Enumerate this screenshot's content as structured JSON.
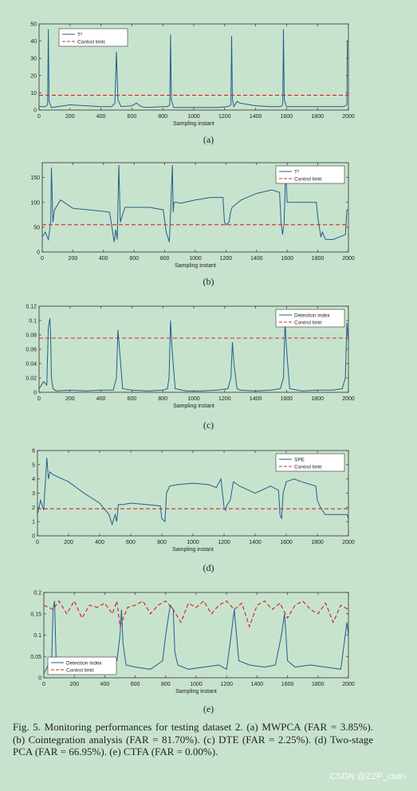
{
  "chart_data": [
    {
      "type": "line",
      "panel": "(a)",
      "xlabel": "Sampling instant",
      "ylabel": "",
      "xlim": [
        0,
        2000
      ],
      "ylim": [
        0,
        50
      ],
      "xticks": [
        0,
        200,
        400,
        600,
        800,
        1000,
        1200,
        1400,
        1600,
        1800,
        2000
      ],
      "yticks": [
        0,
        10,
        20,
        30,
        40,
        50
      ],
      "legend_position": "top-left",
      "grid": false,
      "series": [
        {
          "name": "T²",
          "style": "solid",
          "color": "#1f5f8f",
          "x": [
            0,
            40,
            55,
            60,
            65,
            80,
            120,
            200,
            300,
            400,
            470,
            490,
            500,
            510,
            530,
            600,
            630,
            660,
            700,
            800,
            830,
            845,
            850,
            855,
            870,
            950,
            1050,
            1150,
            1220,
            1240,
            1245,
            1250,
            1260,
            1280,
            1300,
            1400,
            1500,
            1560,
            1575,
            1580,
            1585,
            1600,
            1700,
            1800,
            1900,
            1970,
            1990,
            1993,
            2000
          ],
          "y": [
            2,
            2,
            3,
            47,
            5,
            1.5,
            2,
            3,
            2.5,
            2,
            2,
            4,
            34,
            6,
            2,
            2.5,
            4,
            2,
            1.5,
            2,
            2,
            3,
            44,
            6,
            1.5,
            1.5,
            1.5,
            1.5,
            2,
            3,
            43,
            6,
            2,
            5,
            4,
            2.5,
            2,
            2,
            3,
            47,
            6,
            2,
            2,
            2,
            2,
            2,
            3,
            40,
            40
          ]
        },
        {
          "name": "Control limit",
          "style": "dashed",
          "color": "#cc2b2b",
          "x": [
            0,
            2000
          ],
          "y": [
            8.6,
            8.6
          ]
        }
      ]
    },
    {
      "type": "line",
      "panel": "(b)",
      "xlabel": "Sampling instant",
      "ylabel": "",
      "xlim": [
        0,
        2000
      ],
      "ylim": [
        0,
        180
      ],
      "xticks": [
        0,
        200,
        400,
        600,
        800,
        1000,
        1200,
        1400,
        1600,
        1800,
        2000
      ],
      "yticks": [
        0,
        50,
        100,
        150
      ],
      "legend_position": "top-right",
      "grid": false,
      "series": [
        {
          "name": "T²",
          "style": "solid",
          "color": "#1f5f8f",
          "x": [
            0,
            20,
            40,
            55,
            60,
            70,
            80,
            120,
            200,
            300,
            400,
            440,
            460,
            470,
            480,
            490,
            500,
            510,
            520,
            540,
            600,
            700,
            790,
            810,
            830,
            840,
            850,
            855,
            860,
            880,
            900,
            1000,
            1100,
            1180,
            1190,
            1200,
            1220,
            1230,
            1240,
            1300,
            1400,
            1500,
            1550,
            1560,
            1570,
            1580,
            1590,
            1600,
            1700,
            1790,
            1800,
            1820,
            1830,
            1850,
            1900,
            1980,
            1990,
            2000
          ],
          "y": [
            30,
            40,
            25,
            60,
            170,
            60,
            85,
            105,
            88,
            85,
            82,
            80,
            40,
            20,
            45,
            25,
            175,
            60,
            70,
            90,
            90,
            90,
            85,
            40,
            20,
            95,
            175,
            80,
            100,
            100,
            98,
            105,
            110,
            110,
            60,
            55,
            60,
            80,
            90,
            105,
            118,
            125,
            120,
            60,
            35,
            60,
            170,
            100,
            100,
            100,
            70,
            30,
            40,
            25,
            25,
            35,
            85,
            85
          ]
        },
        {
          "name": "Control limit",
          "style": "dashed",
          "color": "#cc2b2b",
          "x": [
            0,
            2000
          ],
          "y": [
            55,
            55
          ]
        }
      ]
    },
    {
      "type": "line",
      "panel": "(c)",
      "xlabel": "Sampling instant",
      "ylabel": "",
      "xlim": [
        0,
        2000
      ],
      "ylim": [
        0,
        0.12
      ],
      "xticks": [
        0,
        200,
        400,
        600,
        800,
        1000,
        1200,
        1400,
        1600,
        1800,
        2000
      ],
      "yticks": [
        0,
        0.02,
        0.04,
        0.06,
        0.08,
        0.1,
        0.12
      ],
      "legend_position": "top-right",
      "grid": false,
      "series": [
        {
          "name": "Detection index",
          "style": "solid",
          "color": "#1f5f8f",
          "x": [
            0,
            30,
            50,
            60,
            70,
            75,
            80,
            90,
            110,
            200,
            300,
            400,
            480,
            500,
            510,
            520,
            540,
            600,
            700,
            800,
            830,
            840,
            850,
            860,
            880,
            950,
            1050,
            1150,
            1220,
            1240,
            1250,
            1260,
            1280,
            1300,
            1400,
            1500,
            1560,
            1580,
            1590,
            1600,
            1620,
            1700,
            1800,
            1900,
            1960,
            1980,
            1990,
            2000
          ],
          "y": [
            0.005,
            0.015,
            0.01,
            0.09,
            0.103,
            0.08,
            0.02,
            0.005,
            0.002,
            0.003,
            0.002,
            0.003,
            0.003,
            0.02,
            0.087,
            0.06,
            0.005,
            0.003,
            0.002,
            0.003,
            0.005,
            0.02,
            0.1,
            0.06,
            0.005,
            0.002,
            0.002,
            0.003,
            0.005,
            0.02,
            0.07,
            0.04,
            0.005,
            0.003,
            0.002,
            0.003,
            0.005,
            0.02,
            0.098,
            0.06,
            0.005,
            0.002,
            0.003,
            0.003,
            0.005,
            0.02,
            0.097,
            0.07
          ]
        },
        {
          "name": "Control limit",
          "style": "dashed",
          "color": "#cc2b2b",
          "x": [
            0,
            2000
          ],
          "y": [
            0.0755,
            0.0755
          ]
        }
      ]
    },
    {
      "type": "line",
      "panel": "(d)",
      "xlabel": "Sampling instant",
      "ylabel": "",
      "xlim": [
        0,
        2000
      ],
      "ylim": [
        0,
        6
      ],
      "xticks": [
        0,
        200,
        400,
        600,
        800,
        1000,
        1200,
        1400,
        1600,
        1800,
        2000
      ],
      "yticks": [
        0,
        1,
        2,
        3,
        4,
        5,
        6
      ],
      "legend_position": "top-right",
      "grid": false,
      "series": [
        {
          "name": "SPE",
          "style": "solid",
          "color": "#1f5f8f",
          "x": [
            0,
            20,
            40,
            60,
            70,
            80,
            100,
            200,
            300,
            400,
            460,
            480,
            500,
            510,
            520,
            550,
            600,
            700,
            790,
            800,
            820,
            830,
            850,
            900,
            1000,
            1100,
            1150,
            1180,
            1200,
            1210,
            1220,
            1240,
            1260,
            1300,
            1400,
            1500,
            1550,
            1560,
            1570,
            1580,
            1600,
            1650,
            1700,
            1790,
            1800,
            1820,
            1850,
            1900,
            1990,
            2000
          ],
          "y": [
            1.5,
            2.5,
            1.8,
            5.5,
            4,
            4.5,
            4.3,
            3.8,
            3,
            2.3,
            1.5,
            0.8,
            1.5,
            1,
            2.2,
            2.2,
            2.3,
            2.2,
            2.1,
            1.2,
            1,
            3,
            3.5,
            3.6,
            3.7,
            3.6,
            3.4,
            4,
            2,
            1.8,
            2.2,
            2.5,
            3.8,
            3.5,
            3.0,
            3.5,
            3.2,
            1.5,
            1.2,
            3,
            3.8,
            4,
            3.8,
            3.5,
            2.5,
            2,
            1.5,
            1.5,
            1.5,
            1.2
          ]
        },
        {
          "name": "Control limit",
          "style": "dashed",
          "color": "#cc2b2b",
          "x": [
            0,
            2000
          ],
          "y": [
            1.9,
            1.9
          ]
        }
      ]
    },
    {
      "type": "line",
      "panel": "(e)",
      "xlabel": "Sampling instant",
      "ylabel": "",
      "xlim": [
        0,
        2000
      ],
      "ylim": [
        0,
        0.2
      ],
      "xticks": [
        0,
        200,
        400,
        600,
        800,
        1000,
        1200,
        1400,
        1600,
        1800,
        2000
      ],
      "yticks": [
        0,
        0.05,
        0.1,
        0.15,
        0.2
      ],
      "legend_position": "bottom-left",
      "grid": false,
      "series": [
        {
          "name": "Detection index",
          "style": "solid",
          "color": "#1f5f8f",
          "x": [
            0,
            30,
            50,
            60,
            70,
            80,
            90,
            100,
            150,
            200,
            300,
            400,
            480,
            500,
            510,
            520,
            540,
            600,
            700,
            780,
            800,
            830,
            850,
            860,
            880,
            950,
            1050,
            1150,
            1200,
            1230,
            1250,
            1260,
            1280,
            1350,
            1450,
            1520,
            1560,
            1580,
            1590,
            1600,
            1650,
            1750,
            1850,
            1950,
            1990,
            2000
          ],
          "y": [
            0.01,
            0.03,
            0.02,
            0.16,
            0.18,
            0.05,
            0.03,
            0.02,
            0.03,
            0.025,
            0.02,
            0.025,
            0.04,
            0.1,
            0.16,
            0.08,
            0.03,
            0.025,
            0.02,
            0.04,
            0.1,
            0.17,
            0.16,
            0.06,
            0.03,
            0.02,
            0.025,
            0.03,
            0.02,
            0.1,
            0.16,
            0.12,
            0.04,
            0.03,
            0.025,
            0.03,
            0.1,
            0.15,
            0.1,
            0.04,
            0.025,
            0.03,
            0.025,
            0.02,
            0.13,
            0.1
          ]
        },
        {
          "name": "Control limit",
          "style": "dashed",
          "color": "#cc1f1f",
          "x": [
            0,
            60,
            100,
            150,
            200,
            250,
            300,
            350,
            400,
            450,
            480,
            500,
            550,
            600,
            650,
            700,
            750,
            800,
            850,
            900,
            950,
            1000,
            1050,
            1100,
            1150,
            1200,
            1250,
            1300,
            1350,
            1400,
            1450,
            1500,
            1550,
            1600,
            1650,
            1700,
            1750,
            1800,
            1850,
            1900,
            1950,
            2000
          ],
          "y": [
            0.17,
            0.16,
            0.18,
            0.15,
            0.18,
            0.14,
            0.17,
            0.165,
            0.175,
            0.15,
            0.18,
            0.12,
            0.165,
            0.17,
            0.18,
            0.15,
            0.17,
            0.18,
            0.16,
            0.13,
            0.175,
            0.165,
            0.18,
            0.15,
            0.17,
            0.18,
            0.16,
            0.175,
            0.12,
            0.17,
            0.18,
            0.16,
            0.175,
            0.14,
            0.17,
            0.18,
            0.16,
            0.15,
            0.175,
            0.13,
            0.17,
            0.16
          ]
        }
      ]
    }
  ],
  "panels": [
    {
      "label": "(a)"
    },
    {
      "label": "(b)"
    },
    {
      "label": "(c)"
    },
    {
      "label": "(d)"
    },
    {
      "label": "(e)"
    }
  ],
  "caption": "Fig. 5.    Monitoring performances for testing dataset 2. (a) MWPCA (FAR = 3.85%). (b) Cointegration analysis (FAR = 81.70%). (c) DTE (FAR = 2.25%). (d) Two-stage PCA (FAR = 66.95%). (e) CTFA (FAR = 0.00%).",
  "watermark": "CSDN @ZZP_csdn"
}
